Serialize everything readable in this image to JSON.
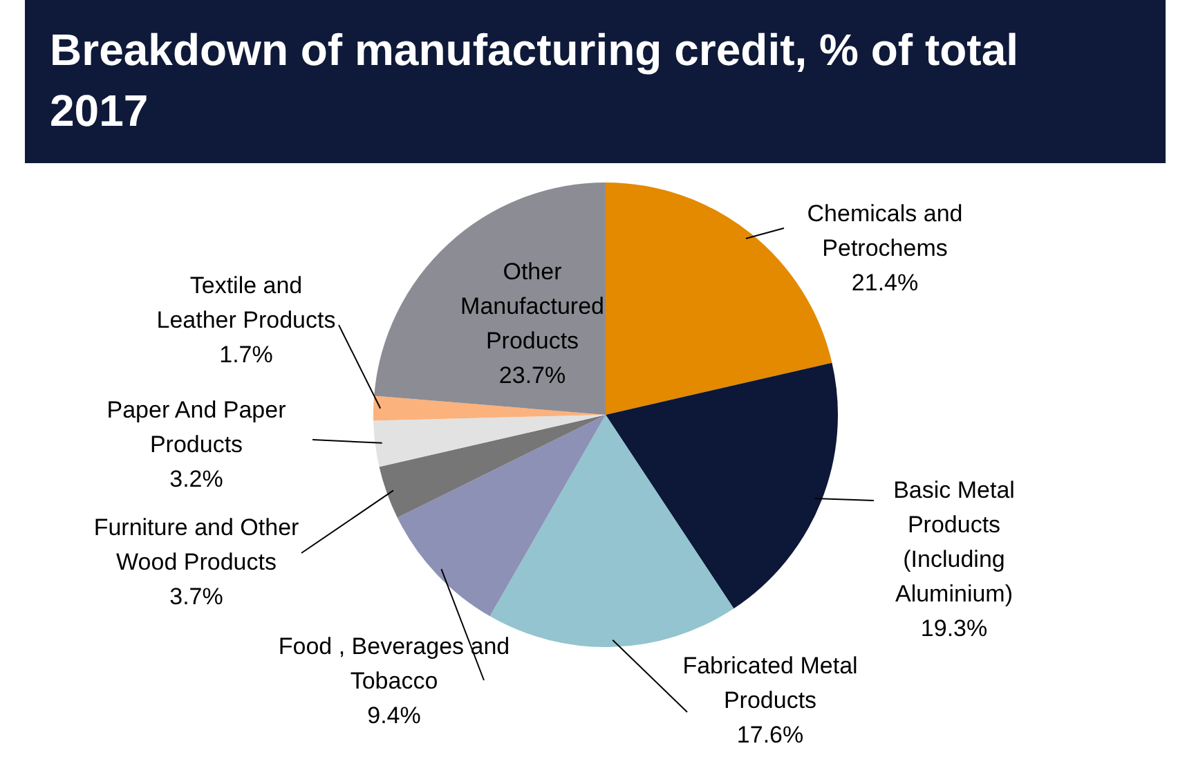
{
  "chart_data": {
    "type": "pie",
    "title": "Breakdown of manufacturing credit, % of total 2017",
    "categories": [
      "Chemicals and Petrochems",
      "Basic Metal Products (Including Aluminium)",
      "Fabricated Metal Products",
      "Food , Beverages and Tobacco",
      "Furniture and Other Wood Products",
      "Paper And Paper Products",
      "Textile and Leather Products",
      "Other Manufactured Products"
    ],
    "values": [
      21.4,
      19.3,
      17.6,
      9.4,
      3.7,
      3.2,
      1.7,
      23.7
    ],
    "colors": [
      "#e38a00",
      "#0d1838",
      "#93c4cf",
      "#8d91b6",
      "#767676",
      "#e2e2e2",
      "#fbb27c",
      "#8c8c94"
    ],
    "value_labels": [
      "21.4%",
      "19.3%",
      "17.6%",
      "9.4%",
      "3.7%",
      "3.2%",
      "1.7%",
      "23.7%"
    ],
    "legend": false
  }
}
